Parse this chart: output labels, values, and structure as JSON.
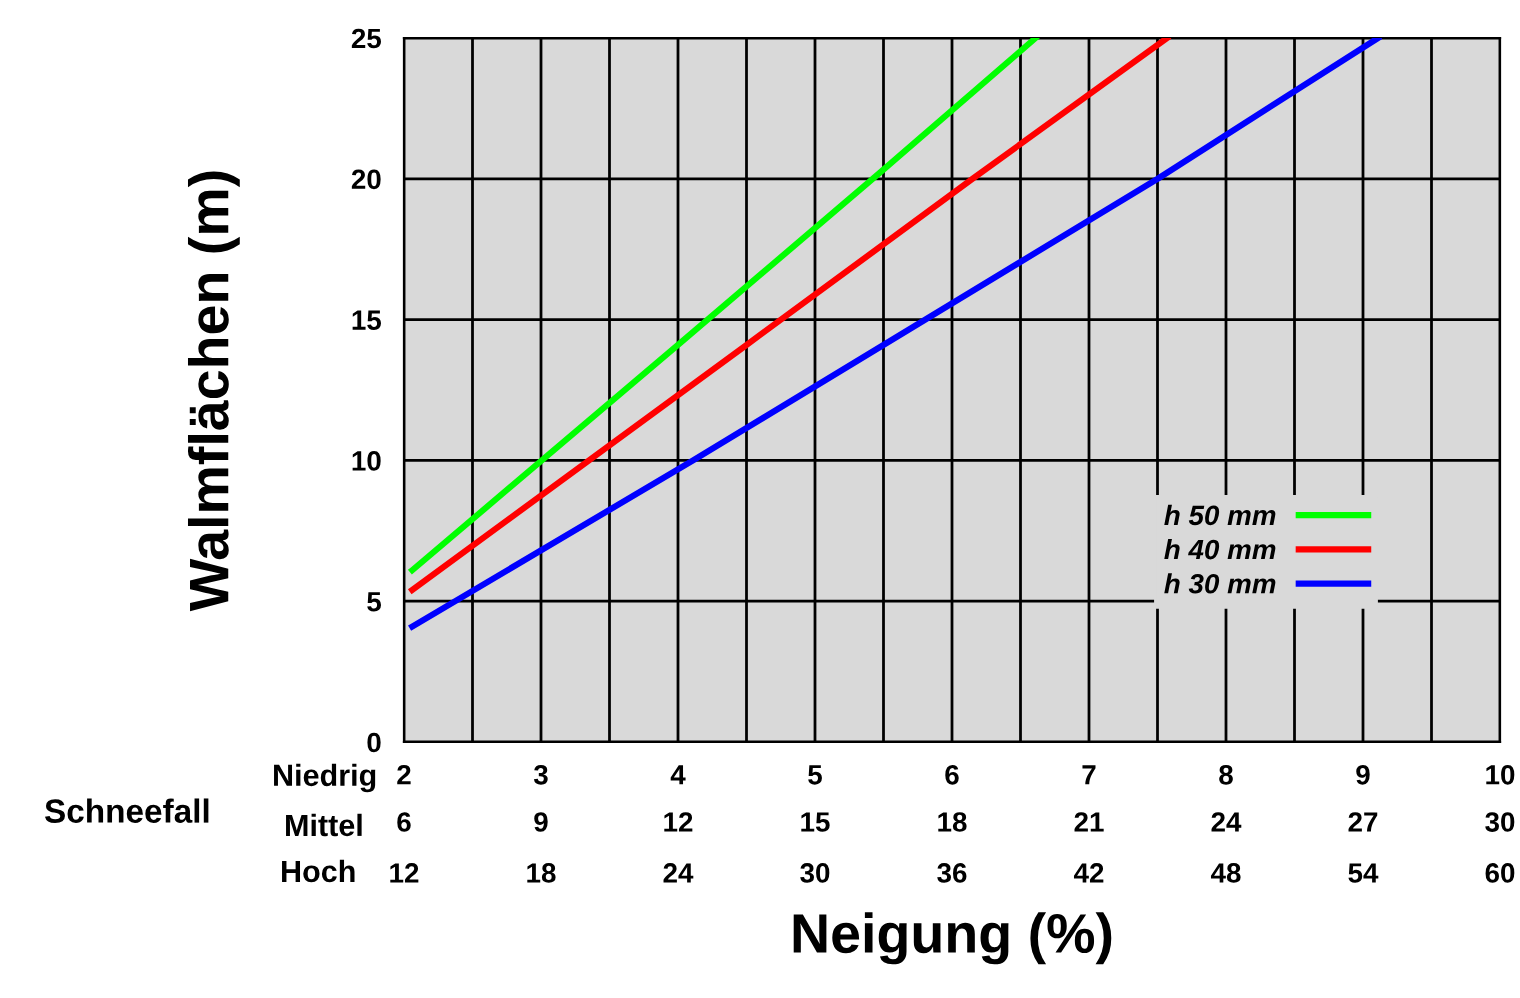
{
  "chart_data": {
    "type": "line",
    "xlabel": "Neigung (%)",
    "ylabel": "Walmflächen (m)",
    "xlim": [
      2,
      10
    ],
    "ylim": [
      0,
      25
    ],
    "yticks": [
      0,
      5,
      10,
      15,
      20,
      25
    ],
    "xticks": [
      2,
      {
        "value": 2.5,
        "label": null
      },
      3,
      {
        "value": 3.5,
        "label": null
      },
      4,
      {
        "value": 4.5,
        "label": null
      },
      5,
      {
        "value": 5.5,
        "label": null
      },
      6,
      {
        "value": 6.5,
        "label": null
      },
      7,
      {
        "value": 7.5,
        "label": null
      },
      8,
      {
        "value": 8.5,
        "label": null
      },
      9,
      {
        "value": 9.5,
        "label": null
      },
      10
    ],
    "x2lim": [
      6,
      30
    ],
    "x2ticks": [
      6,
      9,
      12,
      15,
      18,
      21,
      24,
      27,
      30
    ],
    "series": [
      {
        "name": "h 50 mm",
        "color": "#00ff00",
        "x": [
          2.06,
          4.0,
          5.47,
          6.61
        ],
        "values": [
          6.1,
          14.1,
          20.2,
          25
        ]
      },
      {
        "name": "h 40 mm",
        "color": "#ff0000",
        "x": [
          2.06,
          4.5,
          6.15,
          7.57
        ],
        "values": [
          5.4,
          14.1,
          20.0,
          25
        ]
      },
      {
        "name": "h 30 mm",
        "color": "#0000ff",
        "x": [
          2.06,
          4.11,
          7.5,
          9.11
        ],
        "values": [
          4.1,
          10.0,
          20.0,
          25
        ]
      }
    ],
    "annotations": [
      "Schneefall",
      "Niedrig",
      "Mittel",
      "Hoch",
      "12",
      "18",
      "24",
      "30",
      "36",
      "42",
      "48",
      "54",
      "60"
    ],
    "grid": true,
    "legend": "right",
    "marker": "none",
    "line_style": "solid"
  }
}
